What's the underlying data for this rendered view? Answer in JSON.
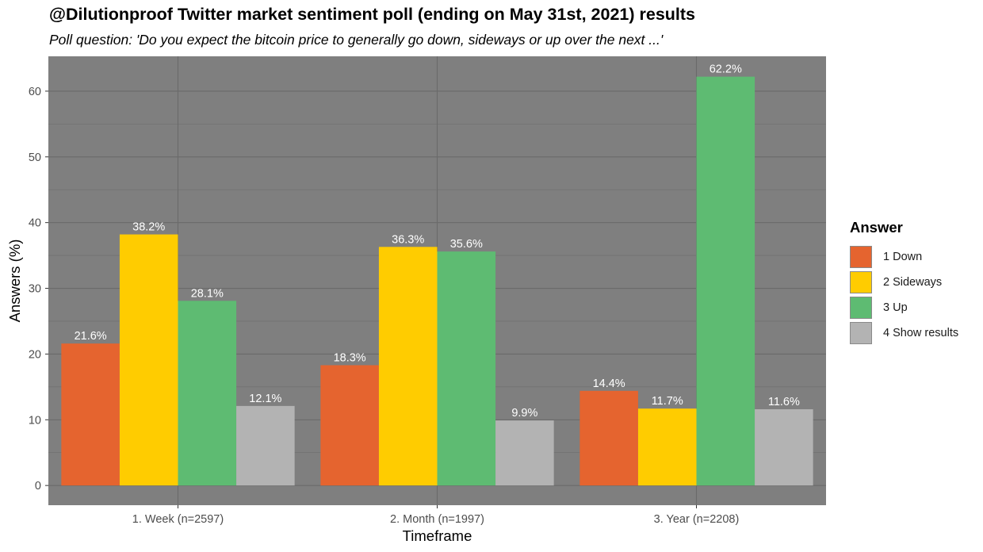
{
  "title": "@Dilutionproof Twitter market sentiment poll (ending on May 31st, 2021) results",
  "subtitle": "Poll question: 'Do you expect the bitcoin price to generally go down, sideways or up over the next ...'",
  "chart_data": {
    "type": "bar",
    "categories": [
      "1. Week (n=2597)",
      "2. Month (n=1997)",
      "3. Year (n=2208)"
    ],
    "series": [
      {
        "name": "1 Down",
        "color": "#E5642F",
        "values": [
          21.6,
          18.3,
          14.4
        ],
        "labels": [
          "21.6%",
          "18.3%",
          "14.4%"
        ]
      },
      {
        "name": "2 Sideways",
        "color": "#FFCC00",
        "values": [
          38.2,
          36.3,
          11.7
        ],
        "labels": [
          "38.2%",
          "36.3%",
          "11.7%"
        ]
      },
      {
        "name": "3 Up",
        "color": "#5EBB72",
        "values": [
          28.1,
          35.6,
          62.2
        ],
        "labels": [
          "28.1%",
          "35.6%",
          "62.2%"
        ]
      },
      {
        "name": "4 Show results",
        "color": "#B3B3B3",
        "values": [
          12.1,
          9.9,
          11.6
        ],
        "labels": [
          "12.1%",
          "9.9%",
          "11.6%"
        ]
      }
    ],
    "xlabel": "Timeframe",
    "ylabel": "Answers (%)",
    "ylim": [
      -3,
      65.3
    ],
    "yticks": [
      0,
      10,
      20,
      30,
      40,
      50,
      60
    ],
    "ytick_labels": [
      "0",
      "10",
      "20",
      "30",
      "40",
      "50",
      "60"
    ],
    "legend_title": "Answer",
    "legend_position": "right",
    "grid": true,
    "panel_background": "#7F7F7F"
  }
}
